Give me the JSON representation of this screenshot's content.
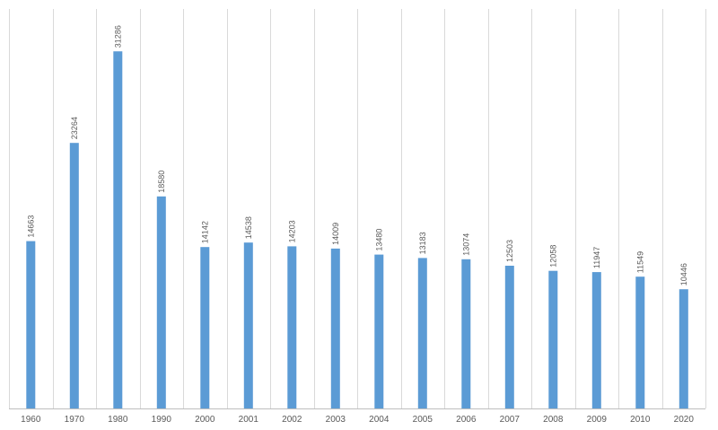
{
  "chart_data": {
    "type": "bar",
    "title": "",
    "xlabel": "",
    "ylabel": "",
    "categories": [
      "1960",
      "1970",
      "1980",
      "1990",
      "2000",
      "2001",
      "2002",
      "2003",
      "2004",
      "2005",
      "2006",
      "2007",
      "2008",
      "2009",
      "2010",
      "2020"
    ],
    "values": [
      14663,
      23264,
      31286,
      18580,
      14142,
      14538,
      14203,
      14009,
      13480,
      13183,
      13074,
      12503,
      12058,
      11947,
      11549,
      10446
    ],
    "ylim": [
      0,
      35000
    ],
    "grid": "vertical",
    "legend": "none",
    "colors": {
      "bar": "#5b9bd5",
      "grid": "#d9d9d9",
      "text": "#595959"
    }
  }
}
